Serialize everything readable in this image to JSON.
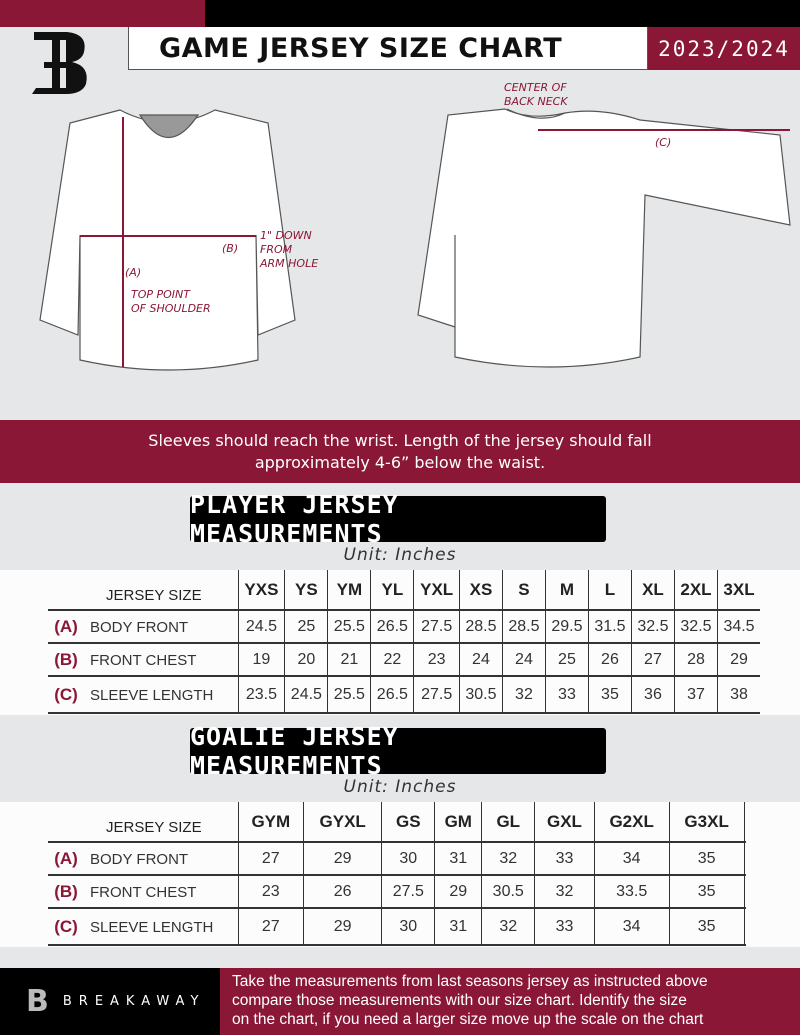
{
  "header": {
    "title": "GAME JERSEY SIZE CHART",
    "season": "2023/2024",
    "logo_letter": "B"
  },
  "diagram": {
    "notes": {
      "back_neck": [
        "CENTER OF",
        "BACK NECK"
      ],
      "c": "(C)",
      "b": "(B)",
      "arm_hole": [
        "1\" DOWN",
        "FROM",
        "ARM HOLE"
      ],
      "a": "(A)",
      "shoulder": [
        "TOP POINT",
        "OF SHOULDER"
      ]
    }
  },
  "band_text": [
    "Sleeves should reach the wrist. Length of the jersey should fall",
    "approximately 4-6” below the waist."
  ],
  "player": {
    "heading": "PLAYER JERSEY MEASUREMENTS",
    "unit": "Unit: Inches",
    "header_label": "JERSEY SIZE",
    "sizes": [
      "YXS",
      "YS",
      "YM",
      "YL",
      "YXL",
      "XS",
      "S",
      "M",
      "L",
      "XL",
      "2XL",
      "3XL"
    ],
    "rows": [
      {
        "letter": "(A)",
        "label": "BODY FRONT",
        "values": [
          "24.5",
          "25",
          "25.5",
          "26.5",
          "27.5",
          "28.5",
          "28.5",
          "29.5",
          "31.5",
          "32.5",
          "32.5",
          "34.5"
        ]
      },
      {
        "letter": "(B)",
        "label": "FRONT CHEST",
        "values": [
          "19",
          "20",
          "21",
          "22",
          "23",
          "24",
          "24",
          "25",
          "26",
          "27",
          "28",
          "29"
        ]
      },
      {
        "letter": "(C)",
        "label": "SLEEVE LENGTH",
        "values": [
          "23.5",
          "24.5",
          "25.5",
          "26.5",
          "27.5",
          "30.5",
          "32",
          "33",
          "35",
          "36",
          "37",
          "38"
        ]
      }
    ]
  },
  "goalie": {
    "heading": "GOALIE JERSEY MEASUREMENTS",
    "unit": "Unit: Inches",
    "header_label": "JERSEY SIZE",
    "sizes": [
      "GYM",
      "GYXL",
      "GS",
      "GM",
      "GL",
      "GXL",
      "G2XL",
      "G3XL",
      ""
    ],
    "rows": [
      {
        "letter": "(A)",
        "label": "BODY FRONT",
        "values": [
          "27",
          "29",
          "30",
          "31",
          "32",
          "33",
          "34",
          "35",
          ""
        ]
      },
      {
        "letter": "(B)",
        "label": "FRONT CHEST",
        "values": [
          "23",
          "26",
          "27.5",
          "29",
          "30.5",
          "32",
          "33.5",
          "35",
          ""
        ]
      },
      {
        "letter": "(C)",
        "label": "SLEEVE LENGTH",
        "values": [
          "27",
          "29",
          "30",
          "31",
          "32",
          "33",
          "34",
          "35",
          ""
        ]
      }
    ]
  },
  "footer": {
    "brand": "BREAKAWAY",
    "text": [
      "Take the measurements from last seasons jersey as instructed above",
      "compare those measurements  with our size chart. Identify the size",
      "on the chart, if you need a larger size move up the scale on the chart"
    ]
  },
  "colors": {
    "accent": "#8a1736",
    "dark": "#000000",
    "background": "#e6e7e8"
  }
}
